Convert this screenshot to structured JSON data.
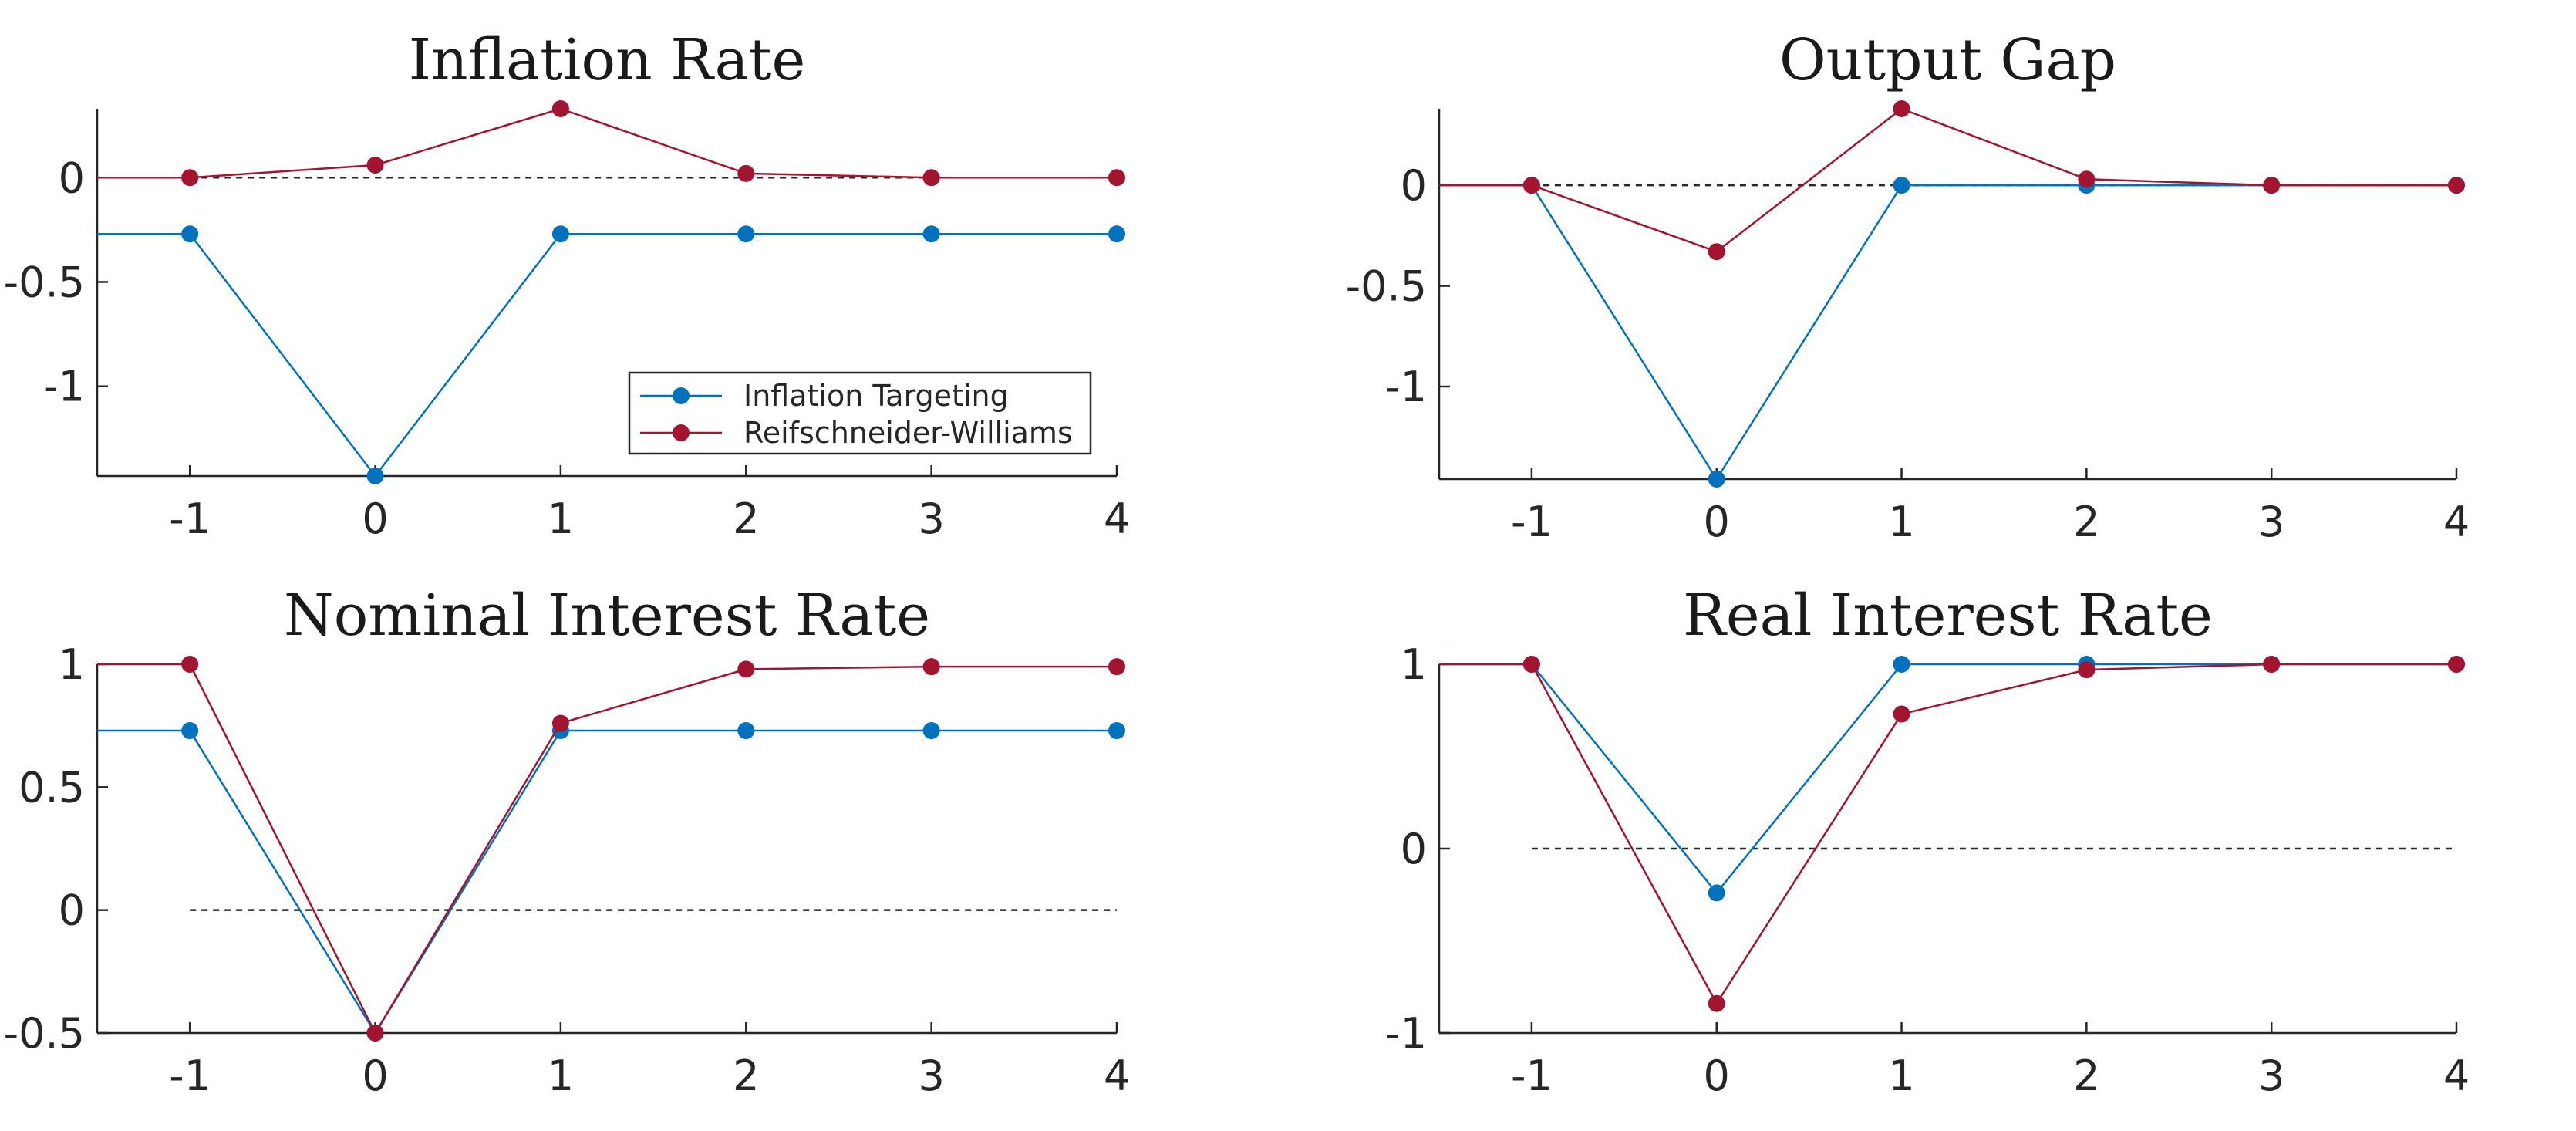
{
  "colors": {
    "inflation_targeting": "#0072BD",
    "reifschneider_williams": "#A2142F"
  },
  "legend": {
    "items": [
      "Inflation Targeting",
      "Reifschneider-Williams"
    ]
  },
  "chart_data": [
    {
      "type": "line",
      "title": "Inflation Rate",
      "x": [
        -1,
        0,
        1,
        2,
        3,
        4
      ],
      "xlim": [
        -1.5,
        4
      ],
      "ylim": [
        -1.43,
        0.33
      ],
      "xticks": [
        "-1",
        "0",
        "1",
        "2",
        "3",
        "4"
      ],
      "yticks": [
        {
          "v": 0,
          "label": "0"
        },
        {
          "v": -0.5,
          "label": "-0.5"
        },
        {
          "v": -1,
          "label": "-1"
        }
      ],
      "series": [
        {
          "name": "Inflation Targeting",
          "values": [
            -0.27,
            -1.43,
            -0.27,
            -0.27,
            -0.27,
            -0.27
          ],
          "lead": -0.27
        },
        {
          "name": "Reifschneider-Williams",
          "values": [
            0,
            0.06,
            0.33,
            0.02,
            0,
            0
          ],
          "lead": 0
        }
      ],
      "zero_line": 0,
      "legend": "bottom-right"
    },
    {
      "type": "line",
      "title": "Output Gap",
      "x": [
        -1,
        0,
        1,
        2,
        3,
        4
      ],
      "xlim": [
        -1.5,
        4
      ],
      "ylim": [
        -1.46,
        0.38
      ],
      "xticks": [
        "-1",
        "0",
        "1",
        "2",
        "3",
        "4"
      ],
      "yticks": [
        {
          "v": 0,
          "label": "0"
        },
        {
          "v": -0.5,
          "label": "-0.5"
        },
        {
          "v": -1,
          "label": "-1"
        }
      ],
      "series": [
        {
          "name": "Inflation Targeting",
          "values": [
            0,
            -1.46,
            0,
            0,
            0,
            0
          ],
          "lead": 0
        },
        {
          "name": "Reifschneider-Williams",
          "values": [
            0,
            -0.33,
            0.38,
            0.03,
            0,
            0
          ],
          "lead": 0
        }
      ],
      "zero_line": 0
    },
    {
      "type": "line",
      "title": "Nominal Interest Rate",
      "x": [
        -1,
        0,
        1,
        2,
        3,
        4
      ],
      "xlim": [
        -1.5,
        4
      ],
      "ylim": [
        -0.5,
        1
      ],
      "xticks": [
        "-1",
        "0",
        "1",
        "2",
        "3",
        "4"
      ],
      "yticks": [
        {
          "v": 1,
          "label": "1"
        },
        {
          "v": 0.5,
          "label": "0.5"
        },
        {
          "v": 0,
          "label": "0"
        },
        {
          "v": -0.5,
          "label": "-0.5"
        }
      ],
      "series": [
        {
          "name": "Inflation Targeting",
          "values": [
            0.73,
            -0.5,
            0.73,
            0.73,
            0.73,
            0.73
          ],
          "lead": 0.73
        },
        {
          "name": "Reifschneider-Williams",
          "values": [
            1,
            -0.5,
            0.76,
            0.98,
            0.99,
            0.99
          ],
          "lead": 1
        }
      ],
      "zero_line": 0
    },
    {
      "type": "line",
      "title": "Real Interest Rate",
      "x": [
        -1,
        0,
        1,
        2,
        3,
        4
      ],
      "xlim": [
        -1.5,
        4
      ],
      "ylim": [
        -1,
        1
      ],
      "xticks": [
        "-1",
        "0",
        "1",
        "2",
        "3",
        "4"
      ],
      "yticks": [
        {
          "v": 1,
          "label": "1"
        },
        {
          "v": 0,
          "label": "0"
        },
        {
          "v": -1,
          "label": "-1"
        }
      ],
      "series": [
        {
          "name": "Inflation Targeting",
          "values": [
            1,
            -0.24,
            1,
            1,
            1,
            1
          ],
          "lead": 1
        },
        {
          "name": "Reifschneider-Williams",
          "values": [
            1,
            -0.84,
            0.73,
            0.97,
            1,
            1
          ],
          "lead": 1
        }
      ],
      "zero_line": 0
    }
  ]
}
